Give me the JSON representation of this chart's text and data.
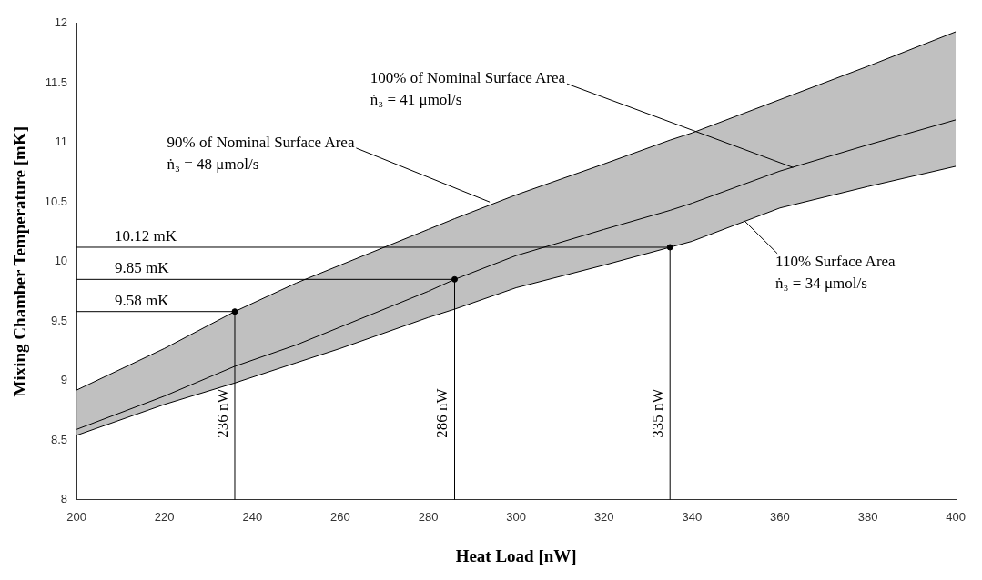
{
  "chart_data": {
    "type": "line",
    "xlabel": "Heat Load [nW]",
    "ylabel": "Mixing Chamber Temperature [mK]",
    "x": [
      200,
      220,
      236,
      250,
      260,
      280,
      286,
      300,
      320,
      335,
      340,
      360,
      380,
      400
    ],
    "series": [
      {
        "color": "#000000",
        "values": [
          8.92,
          9.27,
          9.58,
          9.82,
          9.97,
          10.27,
          10.36,
          10.56,
          10.82,
          11.02,
          11.08,
          11.36,
          11.64,
          11.93
        ]
      },
      {
        "color": "#000000",
        "values": [
          8.54,
          8.8,
          8.98,
          9.15,
          9.27,
          9.53,
          9.6,
          9.78,
          9.97,
          10.12,
          10.17,
          10.45,
          10.63,
          10.8
        ]
      },
      {
        "color": "#000000",
        "values": [
          8.59,
          8.87,
          9.12,
          9.3,
          9.45,
          9.75,
          9.85,
          10.05,
          10.27,
          10.43,
          10.49,
          10.76,
          10.98,
          11.19
        ],
        "upper": [
          8.92,
          9.27,
          9.58,
          9.82,
          9.97,
          10.27,
          10.36,
          10.56,
          10.82,
          11.02,
          11.08,
          11.36,
          11.64,
          11.93
        ],
        "lower": [
          8.54,
          8.8,
          8.98,
          9.15,
          9.27,
          9.53,
          9.6,
          9.78,
          9.97,
          10.12,
          10.17,
          10.45,
          10.63,
          10.8
        ]
      },
      {
        "type": "scatter",
        "color": "#000000",
        "marker": "circle",
        "x": [
          236,
          286,
          335
        ],
        "values": [
          9.58,
          9.85,
          10.12
        ]
      }
    ],
    "ref_lines": [
      {
        "axis": "y",
        "value": 10.12,
        "label": "10.12 mK"
      },
      {
        "axis": "y",
        "value": 9.85,
        "label": "9.85 mK"
      },
      {
        "axis": "y",
        "value": 9.58,
        "label": "9.58 mK"
      },
      {
        "axis": "x",
        "value": 335,
        "label": "335 nW"
      },
      {
        "axis": "x",
        "value": 286,
        "label": "286 nW"
      },
      {
        "axis": "x",
        "value": 236,
        "label": "236 nW"
      }
    ],
    "annotations": [
      {
        "text": "90% of Nominal Surface Area\nṅ₃ = 48 μmol/s",
        "x": 294,
        "y": 10.5
      },
      {
        "text": "100% of Nominal Surface Area\nṅ₃ = 41 μmol/s",
        "x": 363,
        "y": 10.79
      },
      {
        "text": "110% Surface Area\nṅ₃ = 34 μmol/s",
        "x": 352,
        "y": 10.34
      }
    ],
    "xlim": [
      200,
      400
    ],
    "xticks": [
      200,
      220,
      240,
      260,
      280,
      300,
      320,
      340,
      360,
      380,
      400
    ],
    "ylim": [
      8,
      12
    ],
    "yticks": [
      8,
      8.5,
      9,
      9.5,
      10,
      10.5,
      11,
      11.5,
      12
    ],
    "grid": false,
    "legend": false
  }
}
